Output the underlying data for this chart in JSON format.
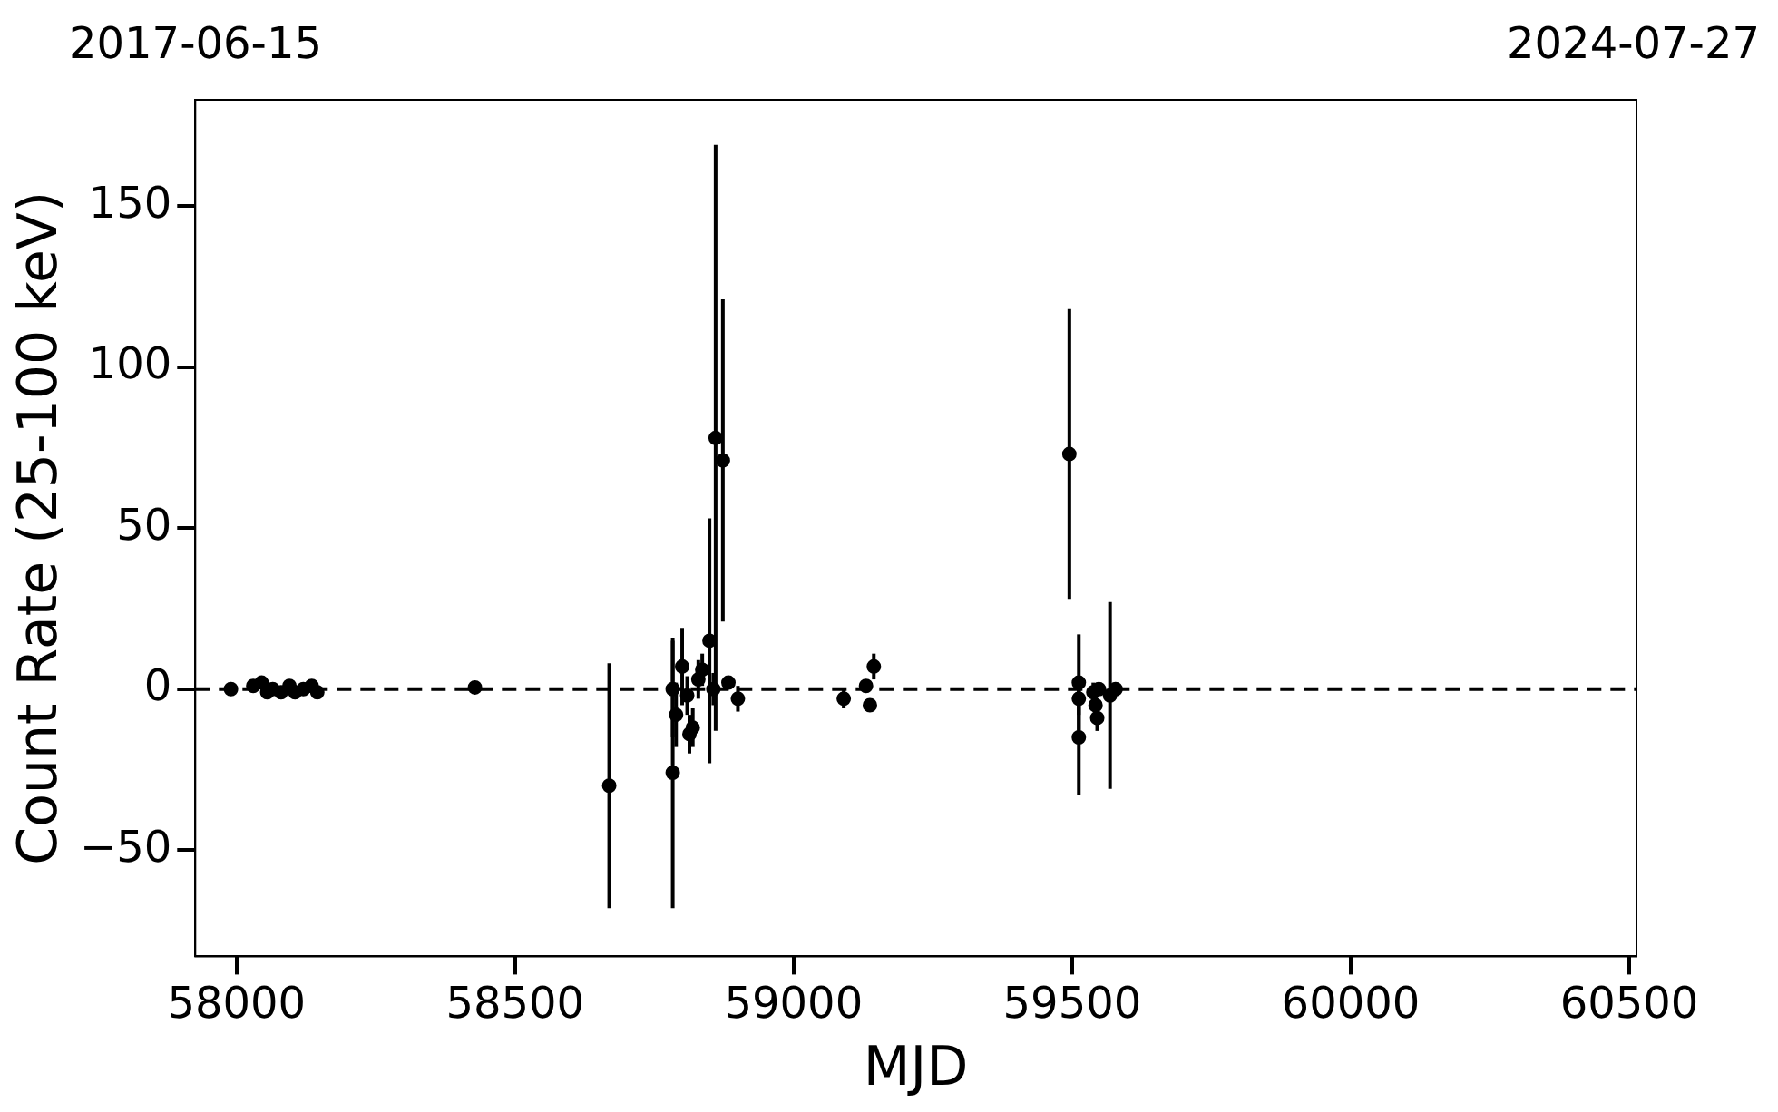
{
  "chart_data": {
    "type": "scatter",
    "xlabel": "MJD",
    "ylabel": "Count Rate (25-100 keV)",
    "annotations": [
      "2017-06-15",
      "2024-07-27"
    ],
    "xlim": [
      57926,
      60513
    ],
    "xticks": [
      58000,
      58500,
      59000,
      59500,
      60000,
      60500
    ],
    "ylim": [
      -83,
      183
    ],
    "yticks": [
      -50,
      0,
      50,
      100,
      150
    ],
    "grid": false,
    "legend": false,
    "marker": "circle",
    "ref_lines": [
      {
        "axis": "y",
        "value": 0,
        "line_style": "dashed",
        "color": "#000000"
      }
    ],
    "series": [
      {
        "color": "#000000",
        "x": [
          57990,
          58030,
          58045,
          58055,
          58065,
          58080,
          58095,
          58105,
          58120,
          58135,
          58145,
          58428,
          58669,
          58783,
          58783,
          58789,
          58800,
          58809,
          58813,
          58819,
          58829,
          58836,
          58849,
          58860,
          58873,
          58856,
          58876,
          58883,
          58900,
          59090,
          59130,
          59137,
          59144,
          59495,
          59512,
          59512,
          59512,
          59538,
          59542,
          59545,
          59548,
          59568,
          59578
        ],
        "values": [
          0,
          1,
          2,
          -1,
          0,
          -1,
          1,
          -1,
          0,
          1,
          -1,
          0.5,
          -30,
          -26,
          0,
          -8,
          7,
          -2,
          -14,
          -12,
          3,
          6,
          15,
          78,
          71,
          0,
          null,
          2,
          -3,
          -3,
          1,
          -5,
          7,
          73,
          2,
          -15,
          -3,
          -1,
          -5,
          -9,
          0,
          -2,
          0
        ],
        "errors": [
          1,
          2,
          2,
          2,
          2,
          2,
          2,
          2,
          2,
          2,
          2,
          1,
          38,
          42,
          15,
          10,
          12,
          6,
          6,
          6,
          6,
          5,
          38,
          91,
          50,
          5,
          null,
          2,
          4,
          3,
          2,
          2,
          4,
          45,
          15,
          18,
          5,
          3,
          4,
          4,
          2,
          29,
          2
        ]
      }
    ]
  }
}
